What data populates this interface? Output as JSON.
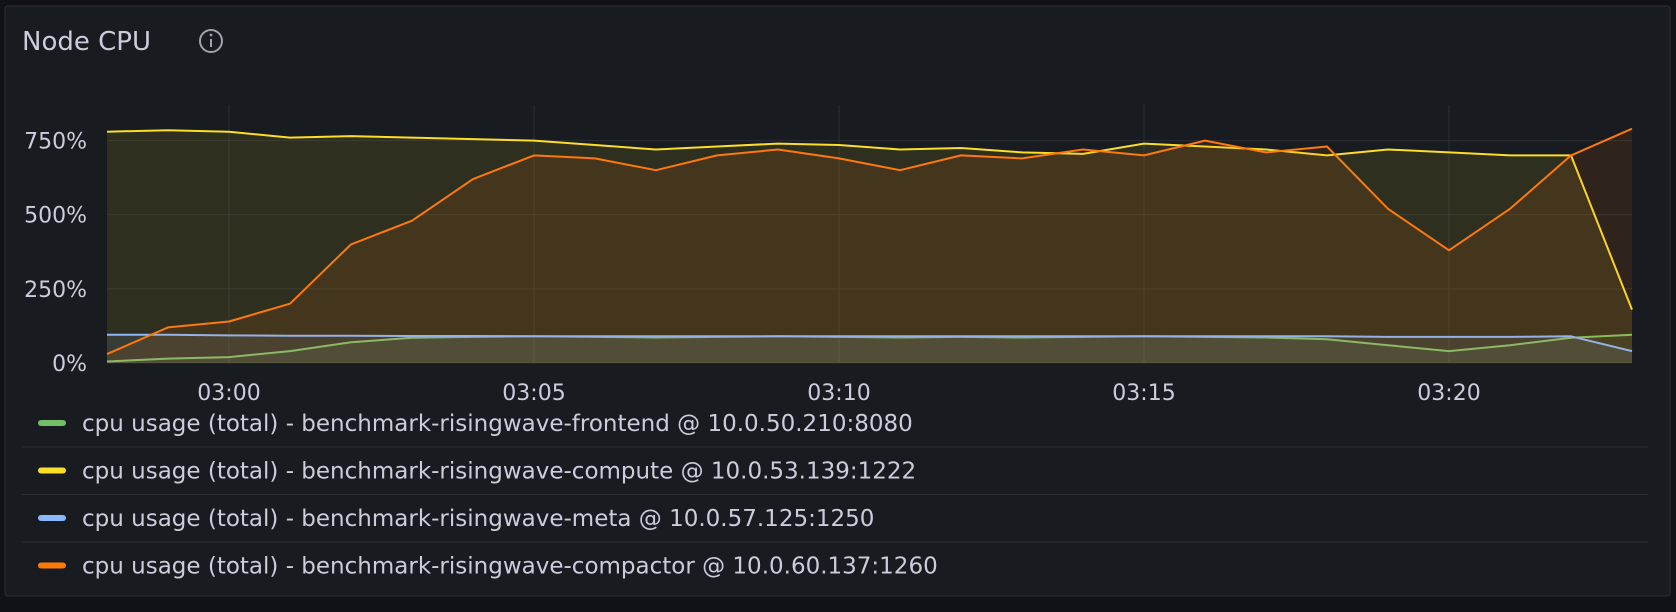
{
  "chart_data": {
    "type": "line",
    "title": "Node CPU",
    "x": [
      "02:58",
      "02:59",
      "03:00",
      "03:01",
      "03:02",
      "03:03",
      "03:04",
      "03:05",
      "03:06",
      "03:07",
      "03:08",
      "03:09",
      "03:10",
      "03:11",
      "03:12",
      "03:13",
      "03:14",
      "03:15",
      "03:16",
      "03:17",
      "03:18",
      "03:19",
      "03:20",
      "03:21",
      "03:22",
      "03:23"
    ],
    "xlim": [
      "02:58",
      "03:23"
    ],
    "xticks": [
      "03:00",
      "03:05",
      "03:10",
      "03:15",
      "03:20"
    ],
    "ylim": [
      0,
      870
    ],
    "yticks": [
      {
        "value": 0,
        "label": "0%"
      },
      {
        "value": 250,
        "label": "250%"
      },
      {
        "value": 500,
        "label": "500%"
      },
      {
        "value": 750,
        "label": "750%"
      }
    ],
    "grid": true,
    "legend": "bottom",
    "series": [
      {
        "name": "cpu usage (total) - benchmark-risingwave-frontend @ 10.0.50.210:8080",
        "color": "#73bf69",
        "values": [
          5,
          15,
          20,
          40,
          70,
          85,
          88,
          90,
          88,
          86,
          88,
          90,
          88,
          86,
          88,
          86,
          88,
          90,
          88,
          86,
          80,
          60,
          40,
          60,
          85,
          95
        ]
      },
      {
        "name": "cpu usage (total) - benchmark-risingwave-compute @ 10.0.53.139:1222",
        "color": "#fade2a",
        "values": [
          780,
          785,
          780,
          760,
          765,
          760,
          755,
          750,
          735,
          720,
          730,
          740,
          735,
          720,
          725,
          710,
          705,
          740,
          730,
          720,
          700,
          720,
          710,
          700,
          700,
          180
        ]
      },
      {
        "name": "cpu usage (total) - benchmark-risingwave-meta @ 10.0.57.125:1250",
        "color": "#8ab8ff",
        "values": [
          95,
          95,
          93,
          92,
          92,
          91,
          91,
          90,
          90,
          90,
          90,
          90,
          90,
          90,
          90,
          90,
          90,
          90,
          90,
          90,
          90,
          88,
          88,
          88,
          90,
          40
        ]
      },
      {
        "name": "cpu usage (total) - benchmark-risingwave-compactor @ 10.0.60.137:1260",
        "color": "#ff780a",
        "values": [
          30,
          120,
          140,
          200,
          400,
          480,
          620,
          700,
          690,
          650,
          700,
          720,
          690,
          650,
          700,
          690,
          720,
          700,
          750,
          710,
          730,
          520,
          380,
          520,
          700,
          790
        ]
      }
    ]
  }
}
